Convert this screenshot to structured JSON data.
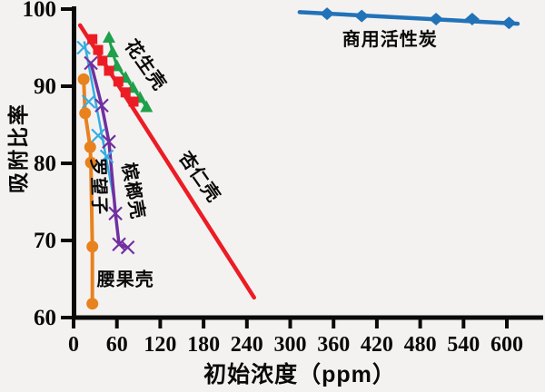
{
  "chart_data": {
    "type": "scatter",
    "title": "",
    "xlabel": "初始浓度（ppm）",
    "ylabel": "吸附比率",
    "xlim": [
      0,
      650
    ],
    "ylim": [
      60,
      100
    ],
    "xticks": [
      0,
      60,
      120,
      180,
      240,
      300,
      360,
      420,
      480,
      540,
      600
    ],
    "yticks": [
      60,
      70,
      80,
      90,
      100
    ],
    "grid": false,
    "legend_position": "inline-annotations",
    "axis_color": "#0a0a0a",
    "series": [
      {
        "name": "罗望子",
        "marker": "x",
        "color": "#35ace2",
        "trend": [
          [
            15,
            95.7
          ],
          [
            58,
            74.3
          ]
        ],
        "points": [
          [
            14,
            95.0
          ],
          [
            21,
            88.0
          ],
          [
            34,
            83.6
          ],
          [
            46,
            80.9
          ]
        ]
      },
      {
        "name": "槟榔壳",
        "marker": "x",
        "color": "#7030a0",
        "connect": true,
        "points": [
          [
            24,
            93.0
          ],
          [
            39,
            87.5
          ],
          [
            49,
            82.8
          ],
          [
            58,
            73.5
          ],
          [
            63,
            69.5
          ],
          [
            75,
            69.1
          ]
        ]
      },
      {
        "name": "花生壳",
        "marker": "triangle",
        "color": "#1fa04a",
        "connect": true,
        "points": [
          [
            49,
            96.3
          ],
          [
            54,
            94.4
          ],
          [
            60,
            92.6
          ],
          [
            72,
            91.1
          ],
          [
            82,
            89.8
          ],
          [
            92,
            88.5
          ],
          [
            101,
            87.3
          ]
        ]
      },
      {
        "name": "杏仁壳",
        "marker": "square",
        "color": "#ec1c24",
        "trend": [
          [
            9,
            97.9
          ],
          [
            250,
            62.6
          ]
        ],
        "points": [
          [
            26,
            96.1
          ],
          [
            34,
            94.7
          ],
          [
            40,
            93.3
          ],
          [
            49,
            92.0
          ],
          [
            62,
            90.6
          ],
          [
            72,
            89.2
          ],
          [
            83,
            88.0
          ]
        ]
      },
      {
        "name": "腰果壳",
        "marker": "circle",
        "color": "#e8821e",
        "connect": true,
        "points": [
          [
            14,
            90.9
          ],
          [
            16,
            86.5
          ],
          [
            23,
            82.1
          ],
          [
            24,
            80.1
          ],
          [
            26,
            69.2
          ],
          [
            26,
            61.8
          ]
        ]
      },
      {
        "name": "商用活性炭",
        "marker": "diamond",
        "color": "#2272b8",
        "trend": [
          [
            313,
            99.6
          ],
          [
            615,
            98.1
          ]
        ],
        "points": [
          [
            351,
            99.4
          ],
          [
            399,
            99.1
          ],
          [
            502,
            98.7
          ],
          [
            552,
            98.7
          ],
          [
            603,
            98.2
          ]
        ]
      }
    ],
    "annotations": [
      {
        "text": "花生壳",
        "x": 99,
        "y": 92.7,
        "rotation": 55
      },
      {
        "text": "杏仁壳",
        "x": 174,
        "y": 78.2,
        "rotation": 55
      },
      {
        "text": "槟榔壳",
        "x": 82,
        "y": 76.4,
        "rotation": 80
      },
      {
        "text": "罗望子",
        "x": 34,
        "y": 77.0,
        "rotation": 88
      },
      {
        "text": "腰果壳",
        "x": 72,
        "y": 64.9,
        "rotation": 0
      },
      {
        "text": "商用活性炭",
        "x": 438,
        "y": 96.0,
        "rotation": 0
      }
    ]
  }
}
